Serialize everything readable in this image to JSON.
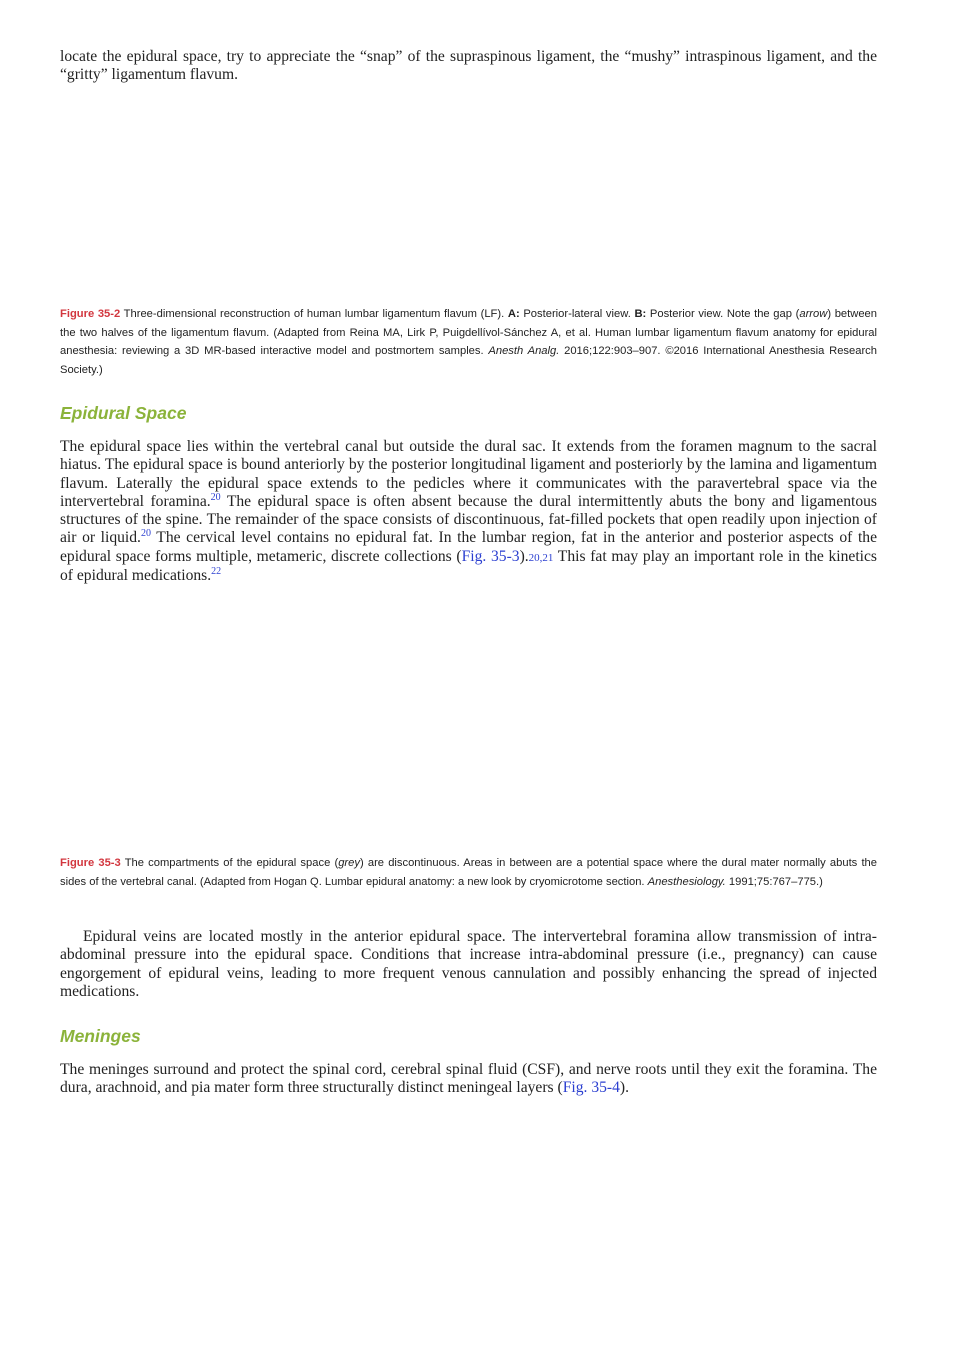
{
  "intro": [
    "locate the epidural space, try to appreciate the “snap” of the supraspinous ligament, the “mushy” intraspinous ligament, and the “gritty” ligamentum flavum."
  ],
  "figure_35_2": {
    "label": "Figure 35-2",
    "caption": [
      " Three-dimensional reconstruction of human lumbar ligamentum flavum (LF). ",
      "A:",
      " Posterior-lateral view. ",
      "B:",
      " Posterior view. Note the gap (",
      "arrow",
      ") between the two halves of the ligamentum flavum. (Adapted from Reina MA, Lirk P, Puigdellívol-Sánchez A, et al. Human lumbar ligamentum flavum anatomy for epidural anesthesia: reviewing a 3D MR-based interactive model and postmortem samples. ",
      "Anesth Analg.",
      " 2016;122:903–907. ©2016 International Anesthesia Research Society.)"
    ]
  },
  "epidural_space": {
    "heading": "Epidural Space",
    "paragraph": [
      "The epidural space lies within the vertebral canal but outside the dural sac. It extends from the foramen magnum to the sacral hiatus. The epidural space is bound anteriorly by the posterior longitudinal ligament and posteriorly by the lamina and ligamentum flavum. Laterally the epidural space extends to the pedicles where it communicates with the paravertebral space via the intervertebral foramina.",
      "20",
      " The epidural space is often absent because the dural intermittently abuts the bony and ligamentous structures of the spine. The remainder of the space consists of discontinuous, fat-filled pockets that open readily upon injection of air or liquid.",
      "20",
      " The cervical level contains no epidural fat. In the lumbar region, fat in the anterior and posterior aspects of the epidural space forms multiple, metameric, discrete collections (",
      "Fig. 35-3",
      ").",
      "20,21",
      " This fat may play an important role in the kinetics of epidural medications.",
      "22"
    ]
  },
  "figure_35_3": {
    "label": "Figure 35-3",
    "caption": [
      " The compartments of the epidural space (",
      "grey",
      ") are discontinuous. Areas in between are a potential space where the dural mater normally abuts the sides of the vertebral canal. (Adapted from Hogan Q. Lumbar epidural anatomy: a new look by cryomicrotome section. ",
      "Anesthesiology.",
      " 1991;75:767–775.)"
    ]
  },
  "veins_paragraph": [
    "Epidural veins are located mostly in the anterior epidural space. The intervertebral foramina allow transmission of intra-abdominal pressure into the epidural space. Conditions that increase intra-abdominal pressure (i.e., pregnancy) can cause engorgement of epidural veins, leading to more frequent venous cannulation and possibly enhancing the spread of injected medications."
  ],
  "meninges": {
    "heading": "Meninges",
    "paragraph": [
      "The meninges surround and protect the spinal cord, cerebral spinal fluid (CSF), and nerve roots until they exit the foramina. The dura, arachnoid, and pia mater form three structurally distinct meningeal layers (",
      "Fig. 35-4",
      ")."
    ]
  }
}
